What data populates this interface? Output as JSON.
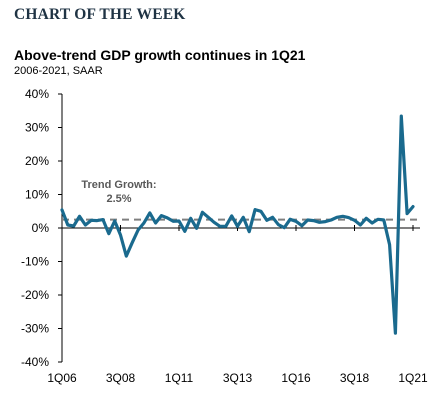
{
  "header": "CHART OF THE WEEK",
  "chart_data": {
    "type": "line",
    "title": "Above-trend GDP growth continues in 1Q21",
    "subtitle": "2006-2021, SAAR",
    "ylim": [
      -40,
      40
    ],
    "yticks": [
      40,
      30,
      20,
      10,
      0,
      -10,
      -20,
      -30,
      -40
    ],
    "ytick_labels": [
      "40%",
      "30%",
      "20%",
      "10%",
      "0%",
      "-10%",
      "-20%",
      "-30%",
      "-40%"
    ],
    "xtick_labels": [
      "1Q06",
      "3Q08",
      "1Q11",
      "3Q13",
      "1Q16",
      "3Q18",
      "1Q21"
    ],
    "xtick_index": [
      0,
      10,
      20,
      30,
      40,
      50,
      60
    ],
    "grid": false,
    "series": [
      {
        "color": "#1a6a8e",
        "values": [
          5.4,
          0.9,
          0.6,
          3.5,
          0.9,
          2.3,
          2.2,
          2.5,
          -1.7,
          2.1,
          -2.1,
          -8.4,
          -4.4,
          -0.6,
          1.5,
          4.5,
          1.5,
          3.7,
          3.0,
          2.0,
          2.1,
          -1.0,
          2.9,
          -0.1,
          4.7,
          3.2,
          1.7,
          0.5,
          0.5,
          3.6,
          0.5,
          3.2,
          -1.1,
          5.5,
          5.0,
          2.3,
          3.2,
          1.0,
          0.1,
          2.6,
          2.0,
          0.7,
          2.4,
          2.2,
          1.7,
          1.9,
          2.4,
          3.2,
          3.5,
          3.1,
          2.3,
          0.9,
          2.9,
          1.5,
          2.6,
          2.4,
          -5.0,
          -31.4,
          33.4,
          4.3,
          6.4
        ]
      }
    ],
    "trend": {
      "value": 2.5,
      "label_line1": "Trend Growth:",
      "label_line2": "2.5%"
    }
  }
}
